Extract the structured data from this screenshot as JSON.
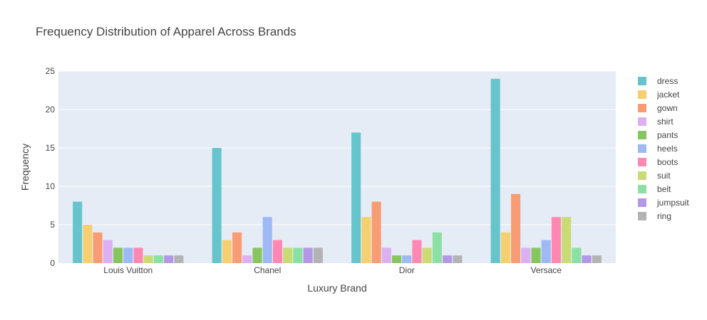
{
  "chart_data": {
    "type": "bar",
    "title": "Frequency Distribution of Apparel Across Brands",
    "xlabel": "Luxury Brand",
    "ylabel": "Frequency",
    "categories": [
      "Louis Vuitton",
      "Chanel",
      "Dior",
      "Versace"
    ],
    "ylim": [
      0,
      25
    ],
    "yticks": [
      0,
      5,
      10,
      15,
      20,
      25
    ],
    "grid": true,
    "legend_position": "right",
    "series": [
      {
        "name": "dress",
        "color": "#66c5cc",
        "values": [
          8,
          15,
          17,
          24
        ]
      },
      {
        "name": "jacket",
        "color": "#f6cf71",
        "values": [
          5,
          3,
          6,
          4
        ]
      },
      {
        "name": "gown",
        "color": "#f89c74",
        "values": [
          4,
          4,
          8,
          9
        ]
      },
      {
        "name": "shirt",
        "color": "#dcb0f2",
        "values": [
          3,
          1,
          2,
          2
        ]
      },
      {
        "name": "pants",
        "color": "#87c55f",
        "values": [
          2,
          2,
          1,
          2
        ]
      },
      {
        "name": "heels",
        "color": "#9eb9f3",
        "values": [
          2,
          6,
          1,
          3
        ]
      },
      {
        "name": "boots",
        "color": "#fe88b1",
        "values": [
          2,
          3,
          3,
          6
        ]
      },
      {
        "name": "suit",
        "color": "#c9db74",
        "values": [
          1,
          2,
          2,
          6
        ]
      },
      {
        "name": "belt",
        "color": "#8be0a4",
        "values": [
          1,
          2,
          4,
          2
        ]
      },
      {
        "name": "jumpsuit",
        "color": "#b497e7",
        "values": [
          1,
          2,
          1,
          1
        ]
      },
      {
        "name": "ring",
        "color": "#b3b3b3",
        "values": [
          1,
          2,
          1,
          1
        ]
      }
    ]
  }
}
